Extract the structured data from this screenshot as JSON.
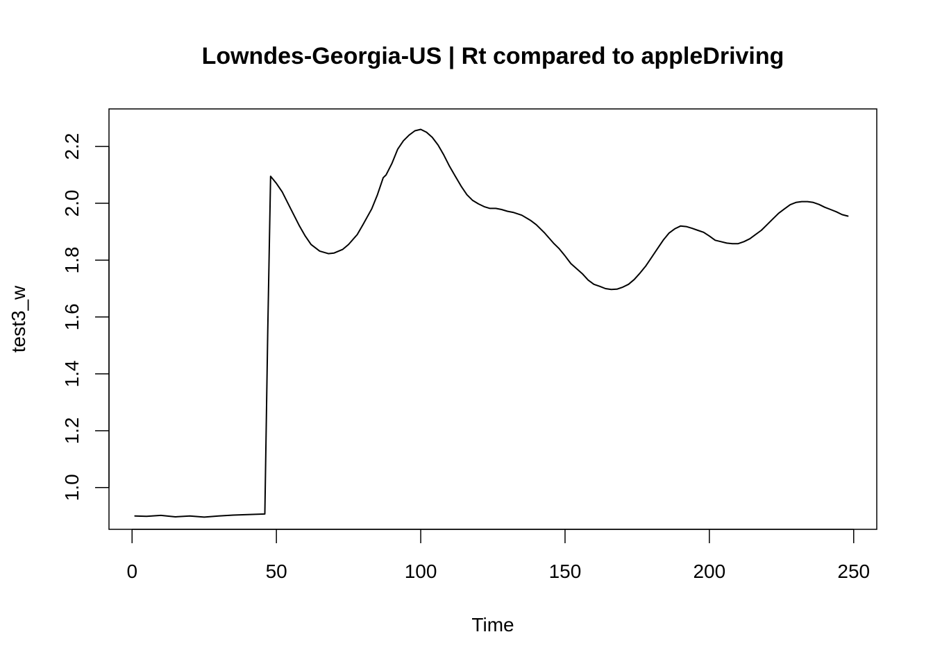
{
  "chart_data": {
    "type": "line",
    "title": "Lowndes-Georgia-US | Rt compared to appleDriving",
    "xlabel": "Time",
    "ylabel": "test3_w",
    "xlim": [
      -8,
      258
    ],
    "ylim": [
      0.853,
      2.332
    ],
    "x_ticks": [
      0,
      50,
      100,
      150,
      200,
      250
    ],
    "y_ticks": [
      1.0,
      1.2,
      1.4,
      1.6,
      1.8,
      2.0,
      2.2
    ],
    "x_tick_labels": [
      "0",
      "50",
      "100",
      "150",
      "200",
      "250"
    ],
    "y_tick_labels": [
      "1.0",
      "1.2",
      "1.4",
      "1.6",
      "1.8",
      "2.0",
      "2.2"
    ],
    "grid": false,
    "legend": "none",
    "line_color": "#000000",
    "series": [
      {
        "x": [
          1,
          5,
          10,
          15,
          20,
          25,
          30,
          35,
          40,
          46,
          47,
          48,
          50,
          52,
          55,
          58,
          60,
          62,
          65,
          68,
          70,
          73,
          75,
          78,
          80,
          83,
          85,
          87,
          88,
          90,
          92,
          94,
          96,
          98,
          100,
          102,
          104,
          106,
          108,
          110,
          112,
          114,
          116,
          118,
          120,
          122,
          124,
          126,
          128,
          130,
          132,
          135,
          138,
          140,
          143,
          146,
          148,
          150,
          152,
          154,
          156,
          158,
          160,
          162,
          164,
          166,
          168,
          170,
          172,
          174,
          176,
          178,
          180,
          182,
          184,
          186,
          188,
          190,
          192,
          194,
          196,
          198,
          200,
          202,
          204,
          206,
          208,
          210,
          212,
          214,
          216,
          218,
          220,
          222,
          224,
          226,
          228,
          230,
          232,
          234,
          236,
          238,
          240,
          242,
          244,
          246,
          248
        ],
        "y": [
          0.9,
          0.899,
          0.902,
          0.897,
          0.9,
          0.896,
          0.9,
          0.903,
          0.905,
          0.907,
          1.55,
          2.095,
          2.07,
          2.04,
          1.98,
          1.92,
          1.885,
          1.855,
          1.832,
          1.823,
          1.825,
          1.838,
          1.855,
          1.89,
          1.925,
          1.98,
          2.03,
          2.09,
          2.1,
          2.14,
          2.19,
          2.22,
          2.24,
          2.255,
          2.26,
          2.25,
          2.232,
          2.205,
          2.17,
          2.13,
          2.095,
          2.06,
          2.03,
          2.01,
          1.998,
          1.988,
          1.982,
          1.982,
          1.978,
          1.972,
          1.968,
          1.958,
          1.94,
          1.925,
          1.895,
          1.86,
          1.84,
          1.815,
          1.788,
          1.77,
          1.752,
          1.73,
          1.715,
          1.708,
          1.7,
          1.697,
          1.698,
          1.705,
          1.715,
          1.732,
          1.755,
          1.78,
          1.81,
          1.84,
          1.87,
          1.895,
          1.91,
          1.92,
          1.918,
          1.912,
          1.905,
          1.898,
          1.885,
          1.87,
          1.865,
          1.86,
          1.858,
          1.858,
          1.865,
          1.875,
          1.89,
          1.905,
          1.925,
          1.945,
          1.965,
          1.98,
          1.995,
          2.003,
          2.006,
          2.006,
          2.003,
          1.996,
          1.986,
          1.978,
          1.97,
          1.96,
          1.955
        ]
      }
    ]
  }
}
